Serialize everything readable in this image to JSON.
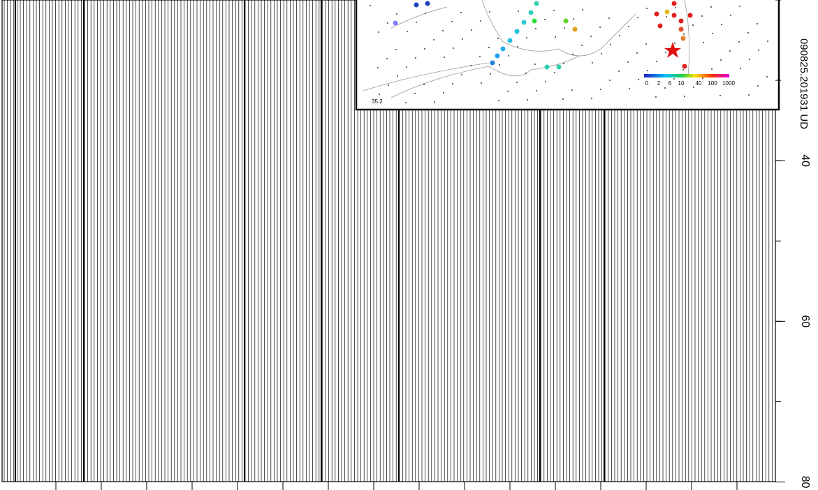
{
  "chart_data": {
    "type": "record-section",
    "title": "090825.201931 UD",
    "ylim": [
      20,
      81
    ],
    "yticks": [
      40,
      60,
      80
    ],
    "inset": {
      "y_label": "35.2",
      "colorbar_ticks": [
        0,
        2,
        6,
        10,
        40,
        100,
        1000
      ]
    }
  }
}
